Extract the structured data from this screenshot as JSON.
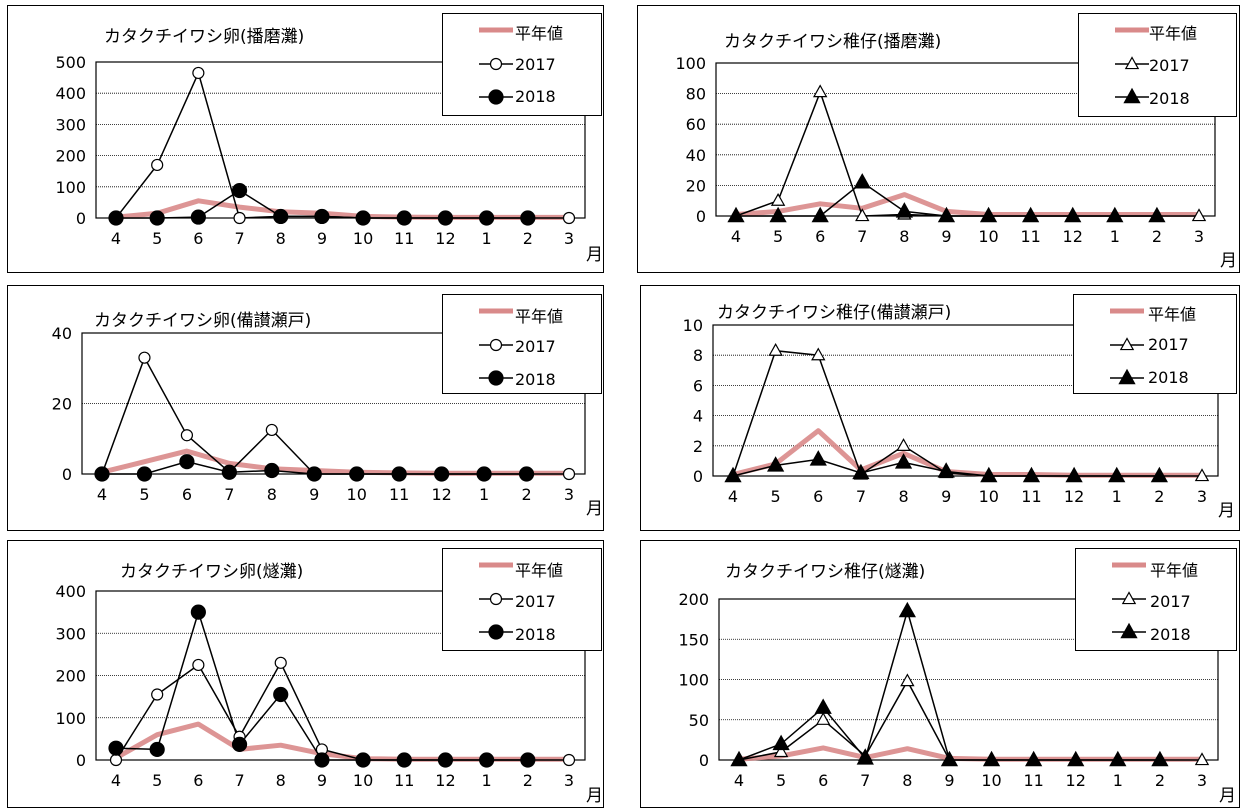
{
  "colors": {
    "average": "#d98a8a",
    "line": "#000000",
    "grid": "#000000"
  },
  "x_unit": "月",
  "chart_data": [
    {
      "type": "line",
      "title": "カタクチイワシ卵(播磨灘)",
      "categories": [
        "4",
        "5",
        "6",
        "7",
        "8",
        "9",
        "10",
        "11",
        "12",
        "1",
        "2",
        "3"
      ],
      "ylim": [
        0,
        500
      ],
      "yticks": [
        0,
        100,
        200,
        300,
        400,
        500
      ],
      "marker": "circle",
      "series": [
        {
          "name": "平年値",
          "values": [
            3,
            15,
            55,
            35,
            20,
            15,
            5,
            3,
            2,
            2,
            2,
            2
          ]
        },
        {
          "name": "2017",
          "values": [
            0,
            170,
            465,
            0,
            5,
            5,
            0,
            0,
            0,
            0,
            0,
            0
          ]
        },
        {
          "name": "2018",
          "values": [
            0,
            0,
            3,
            88,
            5,
            5,
            0,
            0,
            0,
            0,
            0,
            null
          ]
        }
      ]
    },
    {
      "type": "line",
      "title": "カタクチイワシ稚仔(播磨灘)",
      "categories": [
        "4",
        "5",
        "6",
        "7",
        "8",
        "9",
        "10",
        "11",
        "12",
        "1",
        "2",
        "3"
      ],
      "ylim": [
        0,
        100
      ],
      "yticks": [
        0,
        20,
        40,
        60,
        80,
        100
      ],
      "marker": "triangle",
      "series": [
        {
          "name": "平年値",
          "values": [
            1,
            3,
            8,
            5,
            14,
            3,
            1,
            1,
            1,
            1,
            1,
            1
          ]
        },
        {
          "name": "2017",
          "values": [
            0,
            10,
            81,
            0,
            1,
            0,
            0,
            0,
            0,
            0,
            0,
            0
          ]
        },
        {
          "name": "2018",
          "values": [
            0,
            0,
            0,
            22,
            3,
            0,
            0,
            0,
            0,
            0,
            0,
            null
          ]
        }
      ]
    },
    {
      "type": "line",
      "title": "カタクチイワシ卵(備讃瀬戸)",
      "categories": [
        "4",
        "5",
        "6",
        "7",
        "8",
        "9",
        "10",
        "11",
        "12",
        "1",
        "2",
        "3"
      ],
      "ylim": [
        0,
        40
      ],
      "yticks": [
        0,
        20,
        40
      ],
      "marker": "circle",
      "series": [
        {
          "name": "平年値",
          "values": [
            0.5,
            3.5,
            6.5,
            3,
            1.5,
            1,
            0.5,
            0.3,
            0.2,
            0.2,
            0.2,
            0.2
          ]
        },
        {
          "name": "2017",
          "values": [
            0,
            33,
            11,
            0.5,
            12.5,
            0,
            0,
            0,
            0,
            0,
            0,
            0
          ]
        },
        {
          "name": "2018",
          "values": [
            0,
            0,
            3.5,
            0.5,
            1,
            0,
            0,
            0,
            0,
            0,
            0,
            null
          ]
        }
      ]
    },
    {
      "type": "line",
      "title": "カタクチイワシ稚仔(備讃瀬戸)",
      "categories": [
        "4",
        "5",
        "6",
        "7",
        "8",
        "9",
        "10",
        "11",
        "12",
        "1",
        "2",
        "3"
      ],
      "ylim": [
        0,
        10
      ],
      "yticks": [
        0,
        2,
        4,
        6,
        8,
        10
      ],
      "marker": "triangle",
      "series": [
        {
          "name": "平年値",
          "values": [
            0.1,
            0.8,
            3,
            0.4,
            1.5,
            0.3,
            0.1,
            0.1,
            0.05,
            0.05,
            0.05,
            0.05
          ]
        },
        {
          "name": "2017",
          "values": [
            0,
            8.3,
            8,
            0.1,
            2,
            0.2,
            0,
            0,
            0,
            0,
            0,
            0
          ]
        },
        {
          "name": "2018",
          "values": [
            0,
            0.7,
            1.1,
            0.2,
            0.9,
            0.3,
            0,
            0,
            0,
            0,
            0,
            null
          ]
        }
      ]
    },
    {
      "type": "line",
      "title": "カタクチイワシ卵(燧灘)",
      "categories": [
        "4",
        "5",
        "6",
        "7",
        "8",
        "9",
        "10",
        "11",
        "12",
        "1",
        "2",
        "3"
      ],
      "ylim": [
        0,
        400
      ],
      "yticks": [
        0,
        100,
        200,
        300,
        400
      ],
      "marker": "circle",
      "series": [
        {
          "name": "平年値",
          "values": [
            5,
            60,
            85,
            25,
            35,
            15,
            3,
            2,
            2,
            2,
            2,
            2
          ]
        },
        {
          "name": "2017",
          "values": [
            0,
            155,
            225,
            55,
            230,
            25,
            0,
            0,
            0,
            0,
            0,
            0
          ]
        },
        {
          "name": "2018",
          "values": [
            28,
            25,
            350,
            37,
            155,
            0,
            0,
            0,
            0,
            0,
            0,
            null
          ]
        }
      ]
    },
    {
      "type": "line",
      "title": "カタクチイワシ稚仔(燧灘)",
      "categories": [
        "4",
        "5",
        "6",
        "7",
        "8",
        "9",
        "10",
        "11",
        "12",
        "1",
        "2",
        "3"
      ],
      "ylim": [
        0,
        200
      ],
      "yticks": [
        0,
        50,
        100,
        150,
        200
      ],
      "marker": "triangle",
      "series": [
        {
          "name": "平年値",
          "values": [
            1,
            5,
            15,
            3,
            14,
            2,
            1,
            1,
            1,
            1,
            1,
            1
          ]
        },
        {
          "name": "2017",
          "values": [
            0,
            10,
            50,
            5,
            98,
            0,
            0,
            0,
            0,
            0,
            0,
            0
          ]
        },
        {
          "name": "2018",
          "values": [
            0,
            20,
            65,
            2,
            185,
            0,
            0,
            0,
            0,
            0,
            0,
            null
          ]
        }
      ]
    }
  ]
}
